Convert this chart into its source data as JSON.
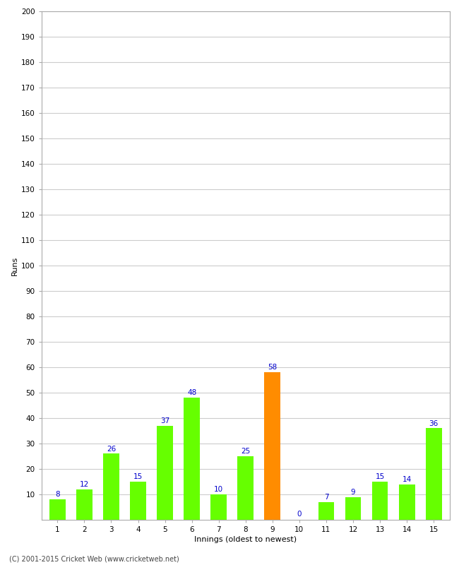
{
  "xlabel": "Innings (oldest to newest)",
  "ylabel": "Runs",
  "categories": [
    1,
    2,
    3,
    4,
    5,
    6,
    7,
    8,
    9,
    10,
    11,
    12,
    13,
    14,
    15
  ],
  "values": [
    8,
    12,
    26,
    15,
    37,
    48,
    10,
    25,
    58,
    0,
    7,
    9,
    15,
    14,
    36
  ],
  "bar_colors": [
    "#66ff00",
    "#66ff00",
    "#66ff00",
    "#66ff00",
    "#66ff00",
    "#66ff00",
    "#66ff00",
    "#66ff00",
    "#ff8c00",
    "#66ff00",
    "#66ff00",
    "#66ff00",
    "#66ff00",
    "#66ff00",
    "#66ff00"
  ],
  "ylim": [
    0,
    200
  ],
  "yticks": [
    10,
    20,
    30,
    40,
    50,
    60,
    70,
    80,
    90,
    100,
    110,
    120,
    130,
    140,
    150,
    160,
    170,
    180,
    190,
    200
  ],
  "label_color": "#0000cc",
  "background_color": "#ffffff",
  "grid_color": "#cccccc",
  "footer": "(C) 2001-2015 Cricket Web (www.cricketweb.net)",
  "axis_label_fontsize": 8,
  "tick_fontsize": 7.5,
  "bar_label_fontsize": 7.5,
  "spine_color": "#aaaaaa",
  "bar_width": 0.6
}
